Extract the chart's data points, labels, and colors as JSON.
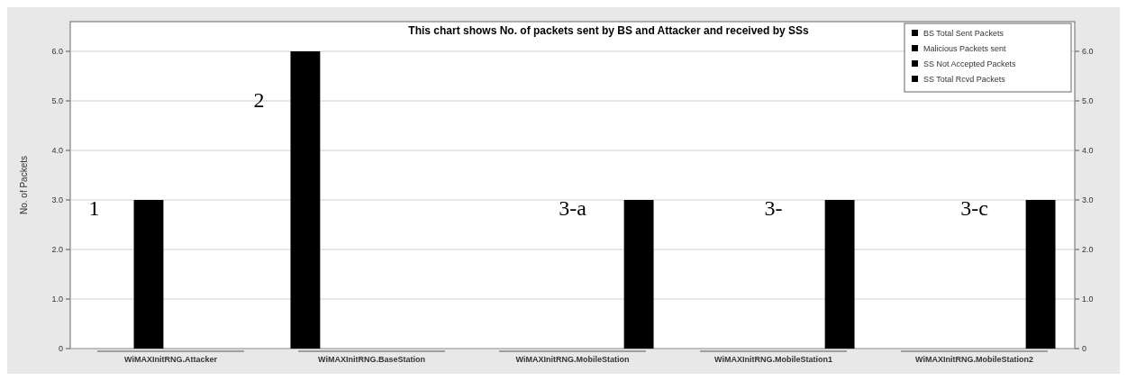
{
  "chart_data": {
    "type": "bar",
    "title": "This chart shows No. of packets sent by BS and Attacker and received by SSs",
    "ylabel": "No. of Packets",
    "categories": [
      "WiMAXInitRNG.Attacker",
      "WiMAXInitRNG.BaseStation",
      "WiMAXInitRNG.MobileStation",
      "WiMAXInitRNG.MobileStation1",
      "WiMAXInitRNG.MobileStation2"
    ],
    "series": [
      {
        "name": "BS Total Sent Packets",
        "color": "#000000",
        "values": [
          0,
          6,
          0,
          0,
          0
        ]
      },
      {
        "name": "Malicious Packets sent",
        "color": "#000000",
        "values": [
          3,
          0,
          0,
          0,
          0
        ]
      },
      {
        "name": "SS Not Accepted Packets",
        "color": "#000000",
        "values": [
          0,
          0,
          0,
          0,
          0
        ]
      },
      {
        "name": "SS Total Rcvd Packets",
        "color": "#000000",
        "values": [
          0,
          0,
          3,
          3,
          3
        ]
      }
    ],
    "ylim": [
      0,
      6.6
    ],
    "yticks": [
      0,
      {
        "value": 1,
        "label": "1.0"
      },
      {
        "value": 2,
        "label": "2.0"
      },
      {
        "value": 3,
        "label": "3.0"
      },
      {
        "value": 4,
        "label": "4.0"
      },
      {
        "value": 5,
        "label": "5.0"
      },
      {
        "value": 6,
        "label": "6.0"
      }
    ],
    "y2lim": [
      0,
      6.6
    ],
    "y2ticks": [
      0,
      {
        "value": 1,
        "label": "1.0"
      },
      {
        "value": 2,
        "label": "2.0"
      },
      {
        "value": 3,
        "label": "3.0"
      },
      {
        "value": 4,
        "label": "4.0"
      },
      {
        "value": 5,
        "label": "5.0"
      },
      {
        "value": 6,
        "label": "6.0"
      }
    ],
    "grid": "y",
    "legend": "top right",
    "annotations": [
      "1",
      "2",
      "3-a",
      "3-",
      "3-c"
    ]
  }
}
